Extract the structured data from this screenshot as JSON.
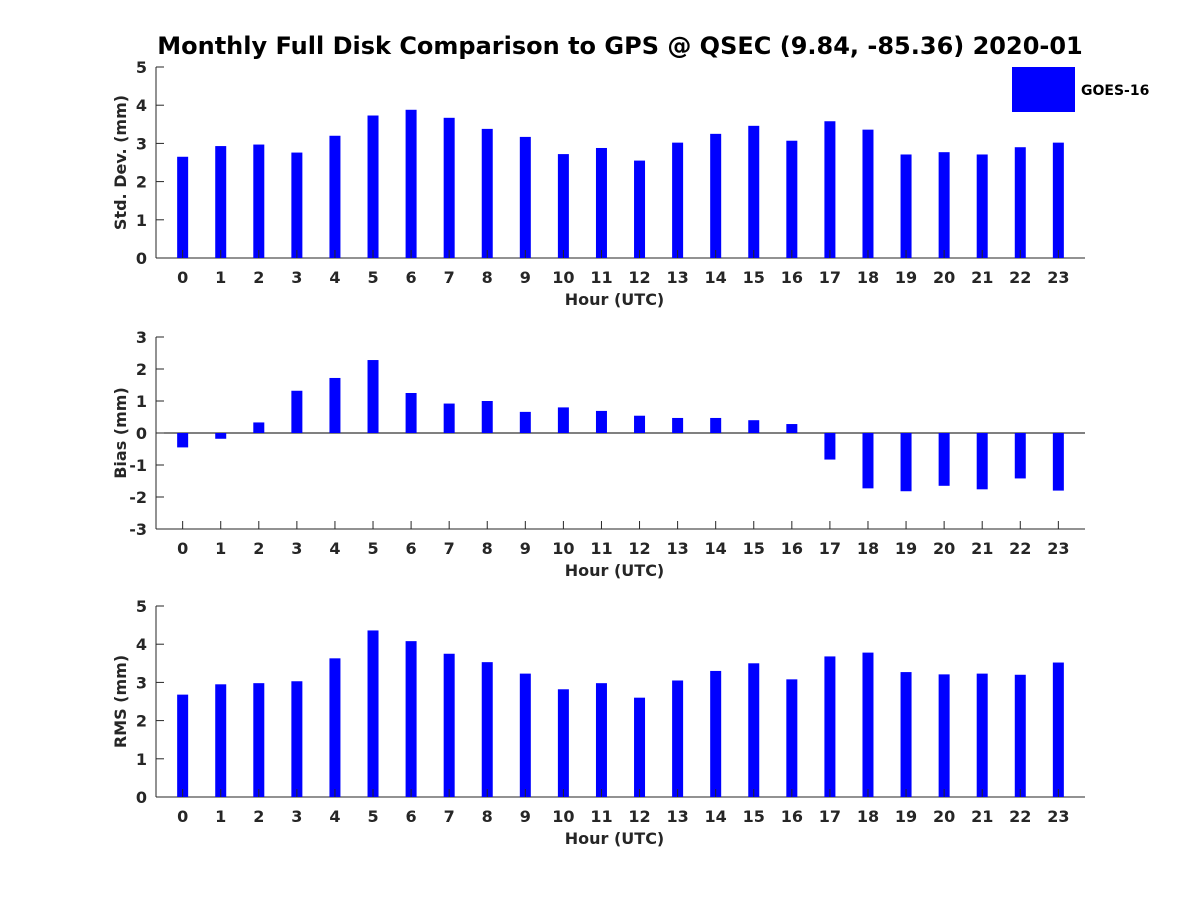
{
  "title": "Monthly Full Disk Comparison to GPS @ QSEC (9.84, -85.36) 2020-01",
  "legend": {
    "label": "GOES-16",
    "color": "#0000ff",
    "placement": "top-right"
  },
  "chart_data": [
    {
      "type": "bar",
      "xlabel": "Hour (UTC)",
      "ylabel": "Std. Dev. (mm)",
      "ylim": [
        0,
        5
      ],
      "yticks": [
        "0",
        "1",
        "2",
        "3",
        "4",
        "5"
      ],
      "categories": [
        "0",
        "1",
        "2",
        "3",
        "4",
        "5",
        "6",
        "7",
        "8",
        "9",
        "10",
        "11",
        "12",
        "13",
        "14",
        "15",
        "16",
        "17",
        "18",
        "19",
        "20",
        "21",
        "22",
        "23"
      ],
      "series": [
        {
          "name": "GOES-16",
          "values": [
            2.65,
            2.93,
            2.97,
            2.76,
            3.2,
            3.73,
            3.88,
            3.67,
            3.38,
            3.17,
            2.72,
            2.88,
            2.55,
            3.02,
            3.25,
            3.46,
            3.07,
            3.58,
            3.36,
            2.71,
            2.77,
            2.71,
            2.9,
            3.02
          ]
        }
      ]
    },
    {
      "type": "bar",
      "xlabel": "Hour (UTC)",
      "ylabel": "Bias (mm)",
      "ylim": [
        -3,
        3
      ],
      "yticks": [
        "-3",
        "-2",
        "-1",
        "0",
        "1",
        "2",
        "3"
      ],
      "categories": [
        "0",
        "1",
        "2",
        "3",
        "4",
        "5",
        "6",
        "7",
        "8",
        "9",
        "10",
        "11",
        "12",
        "13",
        "14",
        "15",
        "16",
        "17",
        "18",
        "19",
        "20",
        "21",
        "22",
        "23"
      ],
      "series": [
        {
          "name": "GOES-16",
          "values": [
            -0.45,
            -0.18,
            0.33,
            1.32,
            1.72,
            2.28,
            1.25,
            0.92,
            1.0,
            0.66,
            0.8,
            0.69,
            0.54,
            0.47,
            0.47,
            0.4,
            0.28,
            -0.83,
            -1.73,
            -1.82,
            -1.65,
            -1.76,
            -1.42,
            -1.8
          ]
        }
      ]
    },
    {
      "type": "bar",
      "xlabel": "Hour (UTC)",
      "ylabel": "RMS (mm)",
      "ylim": [
        0,
        5
      ],
      "yticks": [
        "0",
        "1",
        "2",
        "3",
        "4",
        "5"
      ],
      "categories": [
        "0",
        "1",
        "2",
        "3",
        "4",
        "5",
        "6",
        "7",
        "8",
        "9",
        "10",
        "11",
        "12",
        "13",
        "14",
        "15",
        "16",
        "17",
        "18",
        "19",
        "20",
        "21",
        "22",
        "23"
      ],
      "series": [
        {
          "name": "GOES-16",
          "values": [
            2.68,
            2.95,
            2.98,
            3.03,
            3.63,
            4.36,
            4.08,
            3.75,
            3.53,
            3.23,
            2.82,
            2.98,
            2.6,
            3.05,
            3.3,
            3.5,
            3.08,
            3.68,
            3.78,
            3.27,
            3.21,
            3.23,
            3.2,
            3.52
          ]
        }
      ]
    }
  ]
}
